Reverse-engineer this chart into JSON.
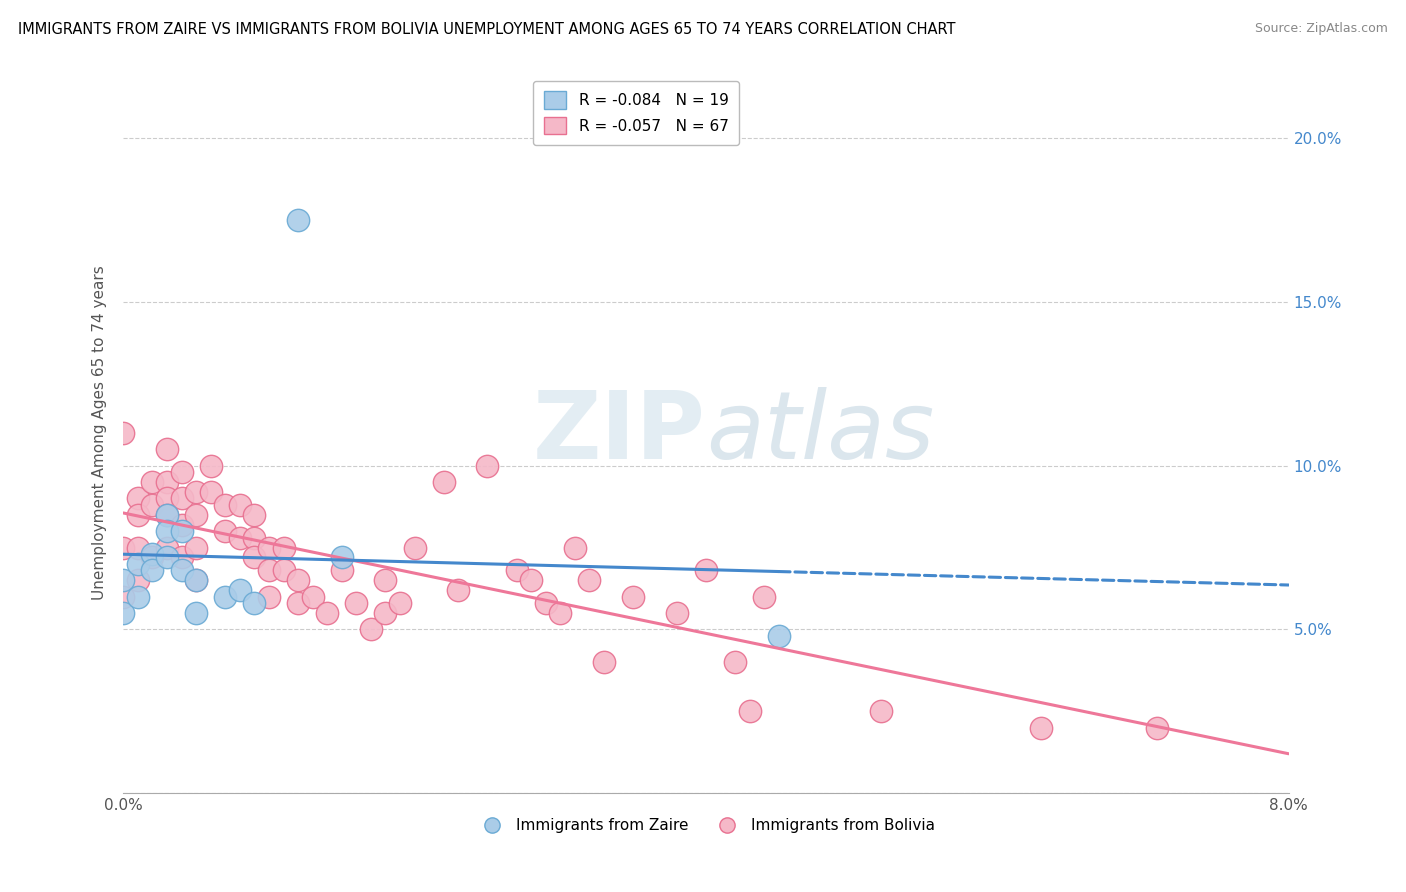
{
  "title": "IMMIGRANTS FROM ZAIRE VS IMMIGRANTS FROM BOLIVIA UNEMPLOYMENT AMONG AGES 65 TO 74 YEARS CORRELATION CHART",
  "source": "Source: ZipAtlas.com",
  "ylabel": "Unemployment Among Ages 65 to 74 years",
  "xlim": [
    0.0,
    0.08
  ],
  "ylim": [
    0.0,
    0.22
  ],
  "x_ticks": [
    0.0,
    0.01,
    0.02,
    0.03,
    0.04,
    0.05,
    0.06,
    0.07,
    0.08
  ],
  "y_ticks": [
    0.0,
    0.05,
    0.1,
    0.15,
    0.2
  ],
  "zaire_R": -0.084,
  "zaire_N": 19,
  "bolivia_R": -0.057,
  "bolivia_N": 67,
  "zaire_color": "#aacce8",
  "bolivia_color": "#f5b8c8",
  "zaire_edge_color": "#6aaad4",
  "bolivia_edge_color": "#e87090",
  "zaire_line_color": "#4488cc",
  "bolivia_line_color": "#ee7799",
  "watermark_color": "#d8e8f0",
  "zaire_points_x": [
    0.0,
    0.0,
    0.001,
    0.001,
    0.002,
    0.002,
    0.003,
    0.003,
    0.003,
    0.004,
    0.004,
    0.005,
    0.005,
    0.007,
    0.008,
    0.009,
    0.012,
    0.015,
    0.045
  ],
  "zaire_points_y": [
    0.065,
    0.055,
    0.07,
    0.06,
    0.073,
    0.068,
    0.085,
    0.08,
    0.072,
    0.08,
    0.068,
    0.065,
    0.055,
    0.06,
    0.062,
    0.058,
    0.175,
    0.072,
    0.048
  ],
  "bolivia_points_x": [
    0.0,
    0.0,
    0.0,
    0.001,
    0.001,
    0.001,
    0.001,
    0.002,
    0.002,
    0.002,
    0.003,
    0.003,
    0.003,
    0.003,
    0.003,
    0.004,
    0.004,
    0.004,
    0.004,
    0.005,
    0.005,
    0.005,
    0.005,
    0.006,
    0.006,
    0.007,
    0.007,
    0.008,
    0.008,
    0.009,
    0.009,
    0.009,
    0.01,
    0.01,
    0.01,
    0.011,
    0.011,
    0.012,
    0.012,
    0.013,
    0.014,
    0.015,
    0.016,
    0.017,
    0.018,
    0.018,
    0.019,
    0.02,
    0.022,
    0.023,
    0.025,
    0.027,
    0.028,
    0.029,
    0.03,
    0.031,
    0.032,
    0.033,
    0.035,
    0.038,
    0.04,
    0.042,
    0.043,
    0.044,
    0.052,
    0.063,
    0.071
  ],
  "bolivia_points_y": [
    0.11,
    0.075,
    0.06,
    0.09,
    0.085,
    0.075,
    0.065,
    0.095,
    0.088,
    0.072,
    0.105,
    0.095,
    0.09,
    0.085,
    0.075,
    0.098,
    0.09,
    0.082,
    0.072,
    0.092,
    0.085,
    0.075,
    0.065,
    0.1,
    0.092,
    0.088,
    0.08,
    0.088,
    0.078,
    0.085,
    0.078,
    0.072,
    0.075,
    0.068,
    0.06,
    0.075,
    0.068,
    0.065,
    0.058,
    0.06,
    0.055,
    0.068,
    0.058,
    0.05,
    0.065,
    0.055,
    0.058,
    0.075,
    0.095,
    0.062,
    0.1,
    0.068,
    0.065,
    0.058,
    0.055,
    0.075,
    0.065,
    0.04,
    0.06,
    0.055,
    0.068,
    0.04,
    0.025,
    0.06,
    0.025,
    0.02,
    0.02
  ]
}
